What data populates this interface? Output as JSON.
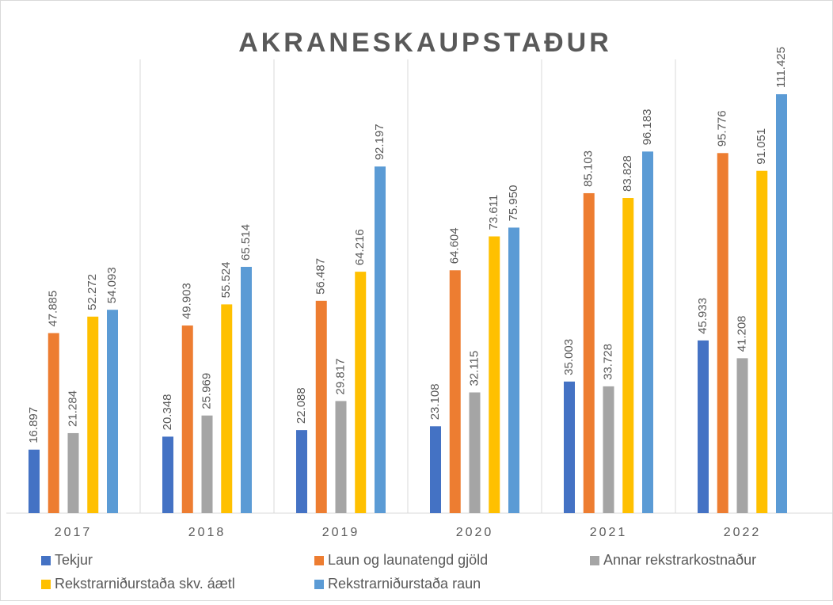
{
  "chart_data": {
    "type": "bar",
    "title": "AKRANESKAUPSTAÐUR",
    "categories": [
      "2017",
      "2018",
      "2019",
      "2020",
      "2021",
      "2022"
    ],
    "series": [
      {
        "name": "Tekjur",
        "color": "#4472c4",
        "values": [
          16.897,
          20.348,
          22.088,
          23.108,
          35.003,
          45.933
        ],
        "value_labels": [
          "16.897",
          "20.348",
          "22.088",
          "23.108",
          "35.003",
          "45.933"
        ]
      },
      {
        "name": "Laun og launatengd gjöld",
        "color": "#ed7d31",
        "values": [
          47.885,
          49.903,
          56.487,
          64.604,
          85.103,
          95.776
        ],
        "value_labels": [
          "47.885",
          "49.903",
          "56.487",
          "64.604",
          "85.103",
          "95.776"
        ]
      },
      {
        "name": "Annar rekstrarkostnaður",
        "color": "#a5a5a5",
        "values": [
          21.284,
          25.969,
          29.817,
          32.115,
          33.728,
          41.208
        ],
        "value_labels": [
          "21.284",
          "25.969",
          "29.817",
          "32.115",
          "33.728",
          "41.208"
        ]
      },
      {
        "name": "Rekstrarniðurstaða skv. áætl",
        "color": "#ffc000",
        "values": [
          52.272,
          55.524,
          64.216,
          73.611,
          83.828,
          91.051
        ],
        "value_labels": [
          "52.272",
          "55.524",
          "64.216",
          "73.611",
          "83.828",
          "91.051"
        ]
      },
      {
        "name": "Rekstrarniðurstaða raun",
        "color": "#5b9bd5",
        "values": [
          54.093,
          65.514,
          92.197,
          75.95,
          96.183,
          111.425
        ],
        "value_labels": [
          "54.093",
          "65.514",
          "92.197",
          "75.950",
          "96.183",
          "111.425"
        ]
      }
    ],
    "legend": "bottom"
  }
}
